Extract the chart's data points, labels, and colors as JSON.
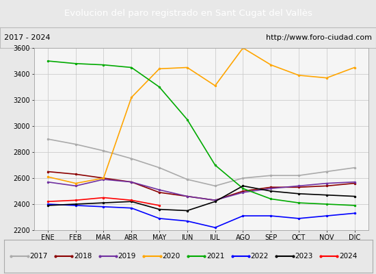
{
  "title": "Evolucion del paro registrado en Sant Cugat del Vallès",
  "title_color": "#ffffff",
  "title_bg": "#4472c4",
  "subtitle_left": "2017 - 2024",
  "subtitle_right": "http://www.foro-ciudad.com",
  "months": [
    "ENE",
    "FEB",
    "MAR",
    "ABR",
    "MAY",
    "JUN",
    "JUL",
    "AGO",
    "SEP",
    "OCT",
    "NOV",
    "DIC"
  ],
  "ylim": [
    2200,
    3600
  ],
  "yticks": [
    2200,
    2400,
    2600,
    2800,
    3000,
    3200,
    3400,
    3600
  ],
  "series": {
    "2017": {
      "color": "#aaaaaa",
      "values": [
        2900,
        2860,
        2810,
        2750,
        2680,
        2590,
        2540,
        2600,
        2620,
        2620,
        2650,
        2680
      ]
    },
    "2018": {
      "color": "#8b0000",
      "values": [
        2650,
        2630,
        2600,
        2570,
        2490,
        2460,
        2430,
        2500,
        2530,
        2530,
        2540,
        2560
      ]
    },
    "2019": {
      "color": "#7030a0",
      "values": [
        2570,
        2540,
        2590,
        2570,
        2510,
        2460,
        2430,
        2490,
        2520,
        2540,
        2560,
        2570
      ]
    },
    "2020": {
      "color": "#ffa500",
      "values": [
        2610,
        2560,
        2600,
        3220,
        3440,
        3450,
        3310,
        3600,
        3470,
        3390,
        3370,
        3450
      ]
    },
    "2021": {
      "color": "#00aa00",
      "values": [
        3500,
        3480,
        3470,
        3450,
        3300,
        3050,
        2700,
        2520,
        2440,
        2410,
        2400,
        2390
      ]
    },
    "2022": {
      "color": "#0000ff",
      "values": [
        2400,
        2390,
        2380,
        2370,
        2290,
        2270,
        2220,
        2310,
        2310,
        2290,
        2310,
        2330
      ]
    },
    "2023": {
      "color": "#000000",
      "values": [
        2390,
        2400,
        2410,
        2420,
        2360,
        2350,
        2420,
        2540,
        2500,
        2480,
        2470,
        2460
      ]
    },
    "2024": {
      "color": "#ff0000",
      "values": [
        2420,
        2430,
        2450,
        2430,
        2390,
        null,
        null,
        null,
        null,
        null,
        null,
        null
      ]
    }
  },
  "bg_color": "#e8e8e8",
  "plot_bg": "#f5f5f5",
  "grid_color": "#cccccc",
  "legend_years": [
    "2017",
    "2018",
    "2019",
    "2020",
    "2021",
    "2022",
    "2023",
    "2024"
  ]
}
